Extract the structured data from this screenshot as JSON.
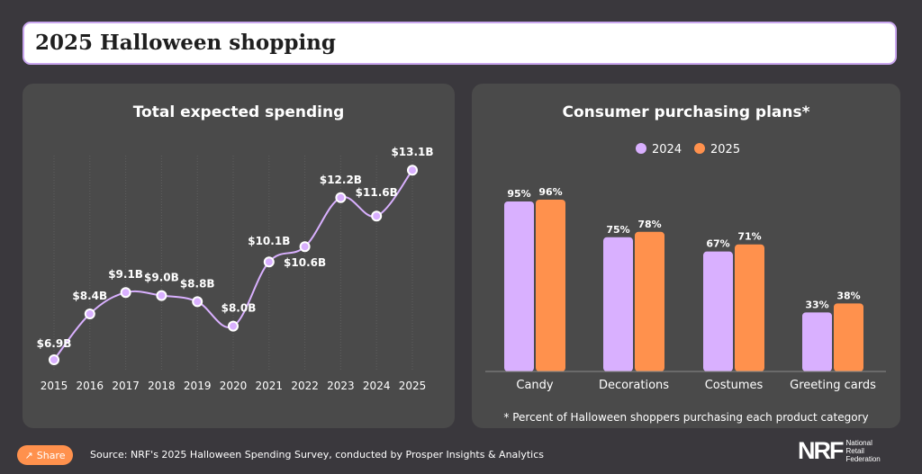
{
  "header": {
    "title": "2025 Halloween shopping"
  },
  "footer": {
    "share_label": "Share",
    "share_icon": "share-icon",
    "source": "Source: NRF's 2025 Halloween Spending Survey, conducted by Prosper Insights & Analytics",
    "logo": {
      "mark": "NRF",
      "lines": [
        "National",
        "Retail",
        "Federation"
      ]
    }
  },
  "colors": {
    "lavender": "#d9b0ff",
    "orange": "#ff914d",
    "panel": "#4a4a4a",
    "background": "#3a383d"
  },
  "chart_data": [
    {
      "type": "line",
      "title": "Total expected spending",
      "x": [
        "2015",
        "2016",
        "2017",
        "2018",
        "2019",
        "2020",
        "2021",
        "2022",
        "2023",
        "2024",
        "2025"
      ],
      "values": [
        6.9,
        8.4,
        9.1,
        9.0,
        8.8,
        8.0,
        10.1,
        10.6,
        12.2,
        11.6,
        13.1
      ],
      "data_labels": [
        "$6.9B",
        "$8.4B",
        "$9.1B",
        "$9.0B",
        "$8.8B",
        "$8.0B",
        "$10.1B",
        "$10.6B",
        "$12.2B",
        "$11.6B",
        "$13.1B"
      ],
      "unit": "billion USD",
      "grid": "vertical dotted",
      "color": "#d9b0ff"
    },
    {
      "type": "bar",
      "title": "Consumer purchasing plans*",
      "categories": [
        "Candy",
        "Decorations",
        "Costumes",
        "Greeting cards"
      ],
      "series": [
        {
          "name": "2024",
          "values": [
            95,
            75,
            67,
            33
          ],
          "labels": [
            "95%",
            "75%",
            "67%",
            "33%"
          ],
          "color": "#d9b0ff"
        },
        {
          "name": "2025",
          "values": [
            96,
            78,
            71,
            38
          ],
          "labels": [
            "96%",
            "78%",
            "71%",
            "38%"
          ],
          "color": "#ff914d"
        }
      ],
      "legend": "top-center",
      "footnote": "* Percent of Halloween shoppers purchasing each product category"
    }
  ]
}
